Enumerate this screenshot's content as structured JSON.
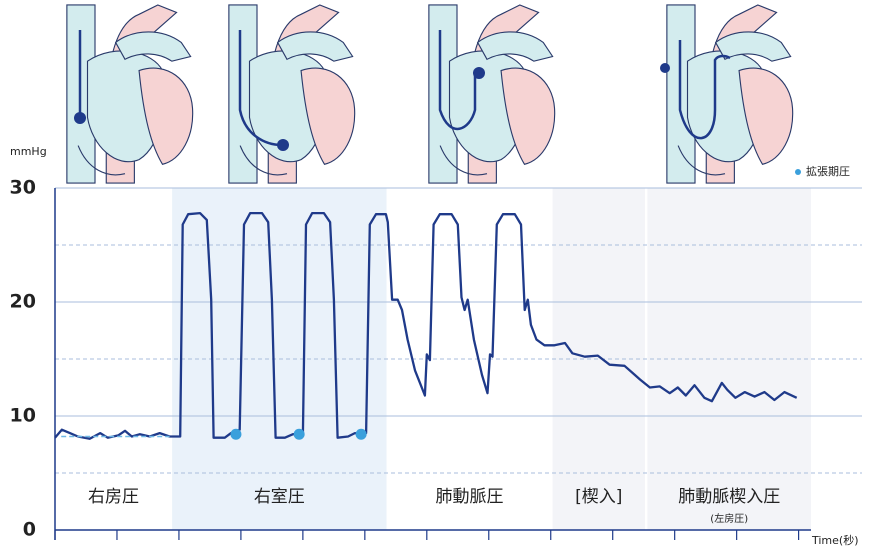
{
  "chart_data": {
    "type": "line",
    "y_label": "mmHg",
    "x_label": "Time(秒)",
    "ylim": [
      0,
      30
    ],
    "yticks": [
      0,
      10,
      20,
      30
    ],
    "minor_yticks": [
      5,
      15,
      25
    ],
    "xlim": [
      0,
      12.2
    ],
    "xticks": [
      0,
      1,
      2,
      3,
      4,
      5,
      6,
      7,
      8,
      9,
      10,
      11,
      12
    ],
    "grid": true,
    "legend": "top-right",
    "regions": [
      {
        "label": "右房圧",
        "start": 0,
        "end": 1.89,
        "fill": null
      },
      {
        "label": "右室圧",
        "start": 1.89,
        "end": 5.35,
        "fill": "#eaf2fa"
      },
      {
        "label": "肺動脈圧",
        "start": 5.35,
        "end": 8.03,
        "fill": null
      },
      {
        "label": "[楔入]",
        "start": 8.03,
        "end": 9.52,
        "fill": "#f3f4f8"
      },
      {
        "label": "肺動脈楔入圧",
        "sublabel": "(左房圧)",
        "start": 9.56,
        "end": 12.2,
        "fill": "#f3f4f8"
      }
    ],
    "series": [
      {
        "color": "#1f3a8a",
        "style": "line",
        "x": [
          0,
          0.11,
          0.24,
          0.37,
          0.56,
          0.73,
          0.85,
          1.02,
          1.13,
          1.24,
          1.37,
          1.53,
          1.69,
          1.85,
          1.98,
          2.02,
          2.06,
          2.15,
          2.34,
          2.45,
          2.52,
          2.56,
          2.74,
          2.84,
          2.98,
          3.05,
          3.15,
          3.34,
          3.44,
          3.5,
          3.56,
          3.71,
          3.84,
          3.94,
          4.0,
          4.05,
          4.15,
          4.34,
          4.44,
          4.5,
          4.56,
          4.73,
          4.84,
          4.94,
          5.02,
          5.08,
          5.18,
          5.34,
          5.37,
          5.44,
          5.53,
          5.6,
          5.69,
          5.81,
          5.97,
          6.0,
          6.05,
          6.11,
          6.21,
          6.4,
          6.5,
          6.56,
          6.61,
          6.66,
          6.76,
          6.89,
          6.98,
          7.02,
          7.06,
          7.13,
          7.23,
          7.42,
          7.52,
          7.58,
          7.63,
          7.68,
          7.77,
          7.9,
          8.06,
          8.23,
          8.35,
          8.55,
          8.76,
          8.95,
          9.19,
          9.44,
          9.6,
          9.76,
          9.92,
          10.05,
          10.18,
          10.32,
          10.48,
          10.6,
          10.76,
          10.85,
          10.98,
          11.13,
          11.29,
          11.45,
          11.61,
          11.77,
          11.97
        ],
        "values": [
          8.1,
          8.8,
          8.5,
          8.2,
          8.0,
          8.5,
          8.1,
          8.3,
          8.7,
          8.2,
          8.4,
          8.2,
          8.5,
          8.2,
          8.2,
          8.2,
          26.8,
          27.7,
          27.8,
          27.2,
          20.2,
          8.1,
          8.1,
          8.5,
          8.8,
          26.8,
          27.8,
          27.8,
          27.0,
          20.2,
          8.1,
          8.1,
          8.4,
          8.4,
          8.4,
          26.8,
          27.8,
          27.8,
          27.0,
          20.2,
          8.1,
          8.2,
          8.5,
          8.4,
          8.5,
          26.8,
          27.7,
          27.7,
          27.0,
          20.2,
          20.2,
          19.3,
          16.7,
          14.0,
          11.8,
          15.4,
          14.9,
          26.8,
          27.7,
          27.7,
          26.8,
          20.4,
          19.3,
          20.2,
          16.7,
          13.6,
          12.0,
          15.4,
          15.2,
          26.8,
          27.7,
          27.7,
          26.8,
          19.3,
          20.2,
          18.0,
          16.7,
          16.2,
          16.2,
          16.4,
          15.5,
          15.2,
          15.3,
          14.5,
          14.4,
          13.2,
          12.5,
          12.6,
          12.0,
          12.5,
          11.8,
          12.7,
          11.6,
          11.3,
          12.9,
          12.3,
          11.6,
          12.1,
          11.7,
          12.1,
          11.4,
          12.1,
          11.6
        ]
      },
      {
        "name": "拡張期圧",
        "color": "#3aa0dc",
        "style": "dots",
        "x": [
          2.92,
          3.94,
          4.94
        ],
        "values": [
          8.4,
          8.4,
          8.4
        ]
      },
      {
        "color": "#6fb8e6",
        "style": "dash",
        "x": [
          0.1,
          1.85
        ],
        "values": [
          8.2,
          8.2
        ]
      }
    ]
  }
}
